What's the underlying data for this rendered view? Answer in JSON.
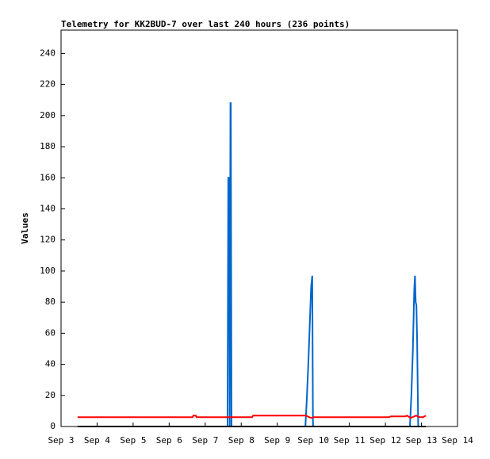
{
  "chart_data": {
    "type": "line",
    "title": "Telemetry for KK2BUD-7 over last 240 hours (236 points)",
    "y_label": "Values",
    "xlim": [
      3,
      14
    ],
    "xticks": [
      {
        "value": 3,
        "label": "Sep 3"
      },
      {
        "value": 4,
        "label": "Sep 4"
      },
      {
        "value": 5,
        "label": "Sep 5"
      },
      {
        "value": 6,
        "label": "Sep 6"
      },
      {
        "value": 7,
        "label": "Sep 7"
      },
      {
        "value": 8,
        "label": "Sep 8"
      },
      {
        "value": 9,
        "label": "Sep 9"
      },
      {
        "value": 10,
        "label": "Sep 10"
      },
      {
        "value": 11,
        "label": "Sep 11"
      },
      {
        "value": 12,
        "label": "Sep 12"
      },
      {
        "value": 13,
        "label": "Sep 13"
      },
      {
        "value": 14,
        "label": "Sep 14"
      }
    ],
    "ylim": [
      0,
      255
    ],
    "yticks": [
      0,
      20,
      40,
      60,
      80,
      100,
      120,
      140,
      160,
      180,
      200,
      220,
      240
    ],
    "series": [
      {
        "color": "#0066cc",
        "x": [
          3.46,
          7.62,
          7.64,
          7.66,
          7.68,
          7.7,
          7.71,
          7.73,
          9.78,
          9.82,
          9.86,
          9.9,
          9.94,
          9.97,
          9.99,
          12.68,
          12.72,
          12.76,
          12.8,
          12.82,
          12.84,
          12.86,
          12.88,
          12.91,
          13.12
        ],
        "values": [
          0,
          0,
          160,
          160,
          0,
          208,
          208,
          0,
          0,
          18,
          40,
          65,
          90,
          97,
          0,
          0,
          20,
          48,
          88,
          97,
          80,
          78,
          55,
          0,
          0
        ]
      },
      {
        "color": "#ff0000",
        "x": [
          3.46,
          6.65,
          6.67,
          6.74,
          6.76,
          7.62,
          7.7,
          8.3,
          8.33,
          9.8,
          9.88,
          9.95,
          9.99,
          10.05,
          12.1,
          12.15,
          12.55,
          12.6,
          12.7,
          12.75,
          12.85,
          12.95,
          13.05,
          13.12
        ],
        "values": [
          6,
          6,
          7,
          7,
          6,
          6,
          6,
          6,
          7,
          7,
          6,
          5.5,
          6,
          6,
          6,
          6.5,
          6.5,
          7,
          5.5,
          6,
          7,
          6,
          6,
          7
        ]
      },
      {
        "color": "#000000",
        "x": [
          3.46,
          13.12
        ],
        "values": [
          0,
          0
        ]
      }
    ]
  }
}
